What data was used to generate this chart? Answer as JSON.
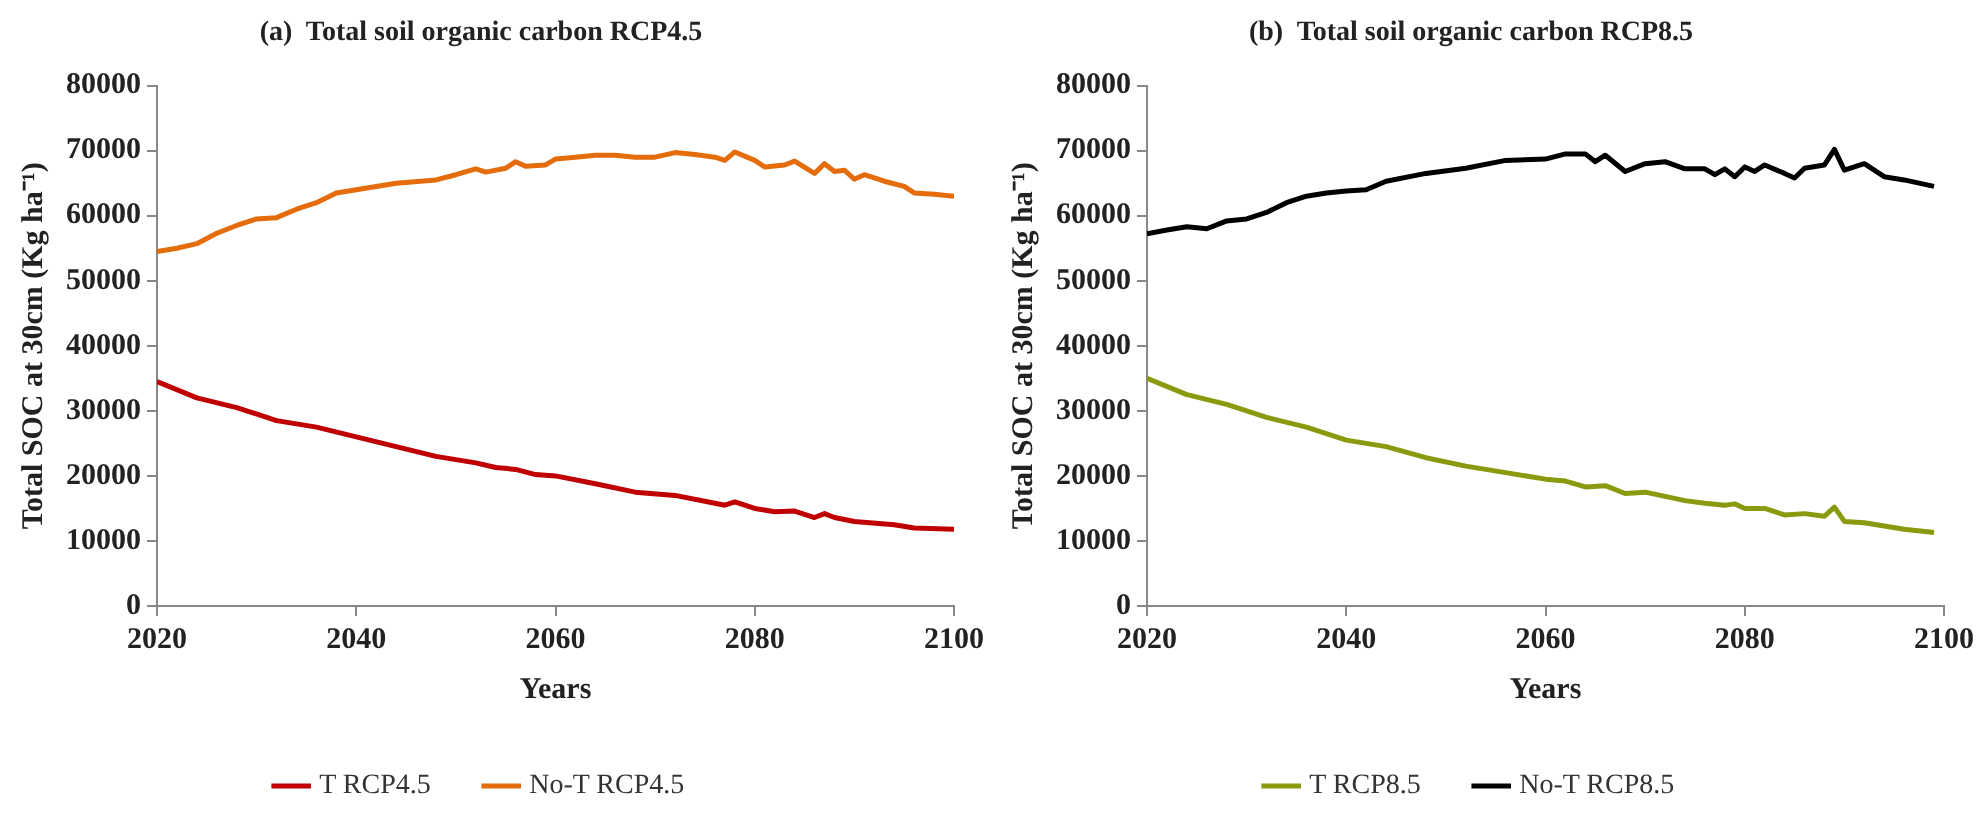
{
  "chart_data": [
    {
      "type": "line",
      "title": "(a)  Total soil organic carbon RCP4.5",
      "xlabel": "Years",
      "ylabel": "Total SOC at 30cm (Kg ha⁻¹)",
      "xlim": [
        2020,
        2100
      ],
      "xticks": [
        2020,
        2040,
        2060,
        2080,
        2100
      ],
      "ylim": [
        0,
        80000
      ],
      "yticks": [
        0,
        10000,
        20000,
        30000,
        40000,
        50000,
        60000,
        70000,
        80000
      ],
      "grid": false,
      "legend": "bottom",
      "marker": "none",
      "series": [
        {
          "name": "T RCP4.5",
          "color": "#c00000",
          "x": [
            2020,
            2024,
            2028,
            2032,
            2036,
            2040,
            2044,
            2048,
            2052,
            2054,
            2056,
            2058,
            2060,
            2064,
            2068,
            2072,
            2076,
            2077,
            2078,
            2080,
            2082,
            2084,
            2086,
            2087,
            2088,
            2090,
            2094,
            2096,
            2100
          ],
          "values": [
            34500,
            32000,
            30500,
            28500,
            27500,
            26000,
            24500,
            23000,
            22000,
            21300,
            21000,
            20200,
            20000,
            18800,
            17500,
            17000,
            15800,
            15500,
            16000,
            15000,
            14500,
            14600,
            13600,
            14200,
            13600,
            13000,
            12500,
            12000,
            11800
          ]
        },
        {
          "name": "No-T RCP4.5",
          "color": "#e46c0a",
          "x": [
            2020,
            2022,
            2024,
            2026,
            2028,
            2030,
            2032,
            2034,
            2036,
            2038,
            2040,
            2044,
            2048,
            2050,
            2052,
            2053,
            2055,
            2056,
            2057,
            2059,
            2060,
            2062,
            2064,
            2066,
            2068,
            2070,
            2072,
            2074,
            2076,
            2077,
            2078,
            2080,
            2081,
            2083,
            2084,
            2086,
            2087,
            2088,
            2089,
            2090,
            2091,
            2093,
            2095,
            2096,
            2098,
            2100
          ],
          "values": [
            54500,
            55000,
            55700,
            57300,
            58500,
            59500,
            59700,
            61000,
            62000,
            63500,
            64000,
            65000,
            65500,
            66300,
            67200,
            66700,
            67300,
            68300,
            67600,
            67800,
            68700,
            69000,
            69300,
            69300,
            69000,
            69000,
            69700,
            69400,
            69000,
            68500,
            69800,
            68500,
            67500,
            67800,
            68400,
            66500,
            68000,
            66800,
            67000,
            65600,
            66300,
            65300,
            64500,
            63500,
            63300,
            63000
          ]
        }
      ]
    },
    {
      "type": "line",
      "title": "(b)  Total soil organic carbon RCP8.5",
      "xlabel": "Years",
      "ylabel": "Total SOC at 30cm (Kg ha⁻¹)",
      "xlim": [
        2020,
        2100
      ],
      "xticks": [
        2020,
        2040,
        2060,
        2080,
        2100
      ],
      "ylim": [
        0,
        80000
      ],
      "yticks": [
        0,
        10000,
        20000,
        30000,
        40000,
        50000,
        60000,
        70000,
        80000
      ],
      "grid": false,
      "legend": "bottom",
      "marker": "none",
      "series": [
        {
          "name": "T RCP8.5",
          "color": "#8a9a0e",
          "x": [
            2020,
            2024,
            2028,
            2032,
            2036,
            2040,
            2044,
            2048,
            2052,
            2056,
            2060,
            2062,
            2064,
            2066,
            2068,
            2070,
            2074,
            2076,
            2078,
            2079,
            2080,
            2082,
            2084,
            2086,
            2088,
            2089,
            2090,
            2092,
            2094,
            2096,
            2099
          ],
          "values": [
            35000,
            32500,
            31000,
            29000,
            27500,
            25500,
            24500,
            22800,
            21500,
            20500,
            19500,
            19200,
            18300,
            18500,
            17300,
            17500,
            16200,
            15800,
            15500,
            15700,
            15000,
            15000,
            14000,
            14200,
            13800,
            15200,
            13000,
            12800,
            12300,
            11800,
            11300
          ]
        },
        {
          "name": "No-T RCP8.5",
          "color": "#000000",
          "x": [
            2020,
            2022,
            2024,
            2026,
            2028,
            2030,
            2032,
            2034,
            2036,
            2038,
            2040,
            2042,
            2044,
            2048,
            2052,
            2056,
            2060,
            2062,
            2064,
            2065,
            2066,
            2068,
            2070,
            2072,
            2074,
            2076,
            2077,
            2078,
            2079,
            2080,
            2081,
            2082,
            2084,
            2085,
            2086,
            2088,
            2089,
            2090,
            2092,
            2094,
            2096,
            2099
          ],
          "values": [
            57200,
            57800,
            58300,
            58000,
            59200,
            59500,
            60500,
            62000,
            63000,
            63500,
            63800,
            64000,
            65300,
            66500,
            67300,
            68500,
            68700,
            69500,
            69500,
            68300,
            69300,
            66800,
            68000,
            68300,
            67200,
            67200,
            66300,
            67200,
            66000,
            67500,
            66800,
            67800,
            66500,
            65800,
            67300,
            67800,
            70200,
            67000,
            68000,
            66000,
            65500,
            64500
          ]
        }
      ]
    }
  ]
}
